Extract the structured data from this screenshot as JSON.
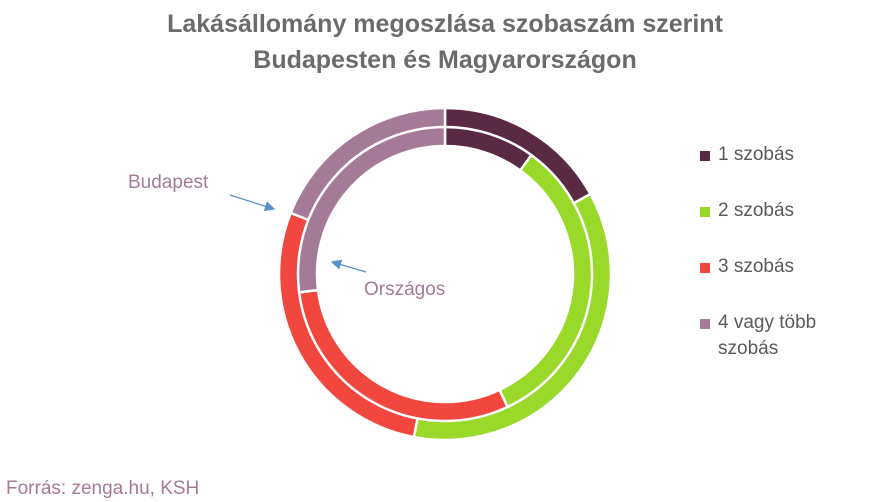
{
  "chart_data": {
    "type": "doughnut",
    "title": [
      "Lakásállomány megoszlása szobaszám szerint",
      "Budapesten és Magyarországon"
    ],
    "categories": [
      "1 szobás",
      "2 szobás",
      "3 szobás",
      "4 vagy több szobás"
    ],
    "colors": [
      "#5a2a45",
      "#98d92a",
      "#f2473f",
      "#a57a96"
    ],
    "series": [
      {
        "name": "Budapest",
        "values": [
          17,
          36,
          28,
          19
        ]
      },
      {
        "name": "Országos",
        "values": [
          10,
          33,
          30,
          27
        ]
      }
    ],
    "source": "Forrás: zenga.hu, KSH"
  }
}
